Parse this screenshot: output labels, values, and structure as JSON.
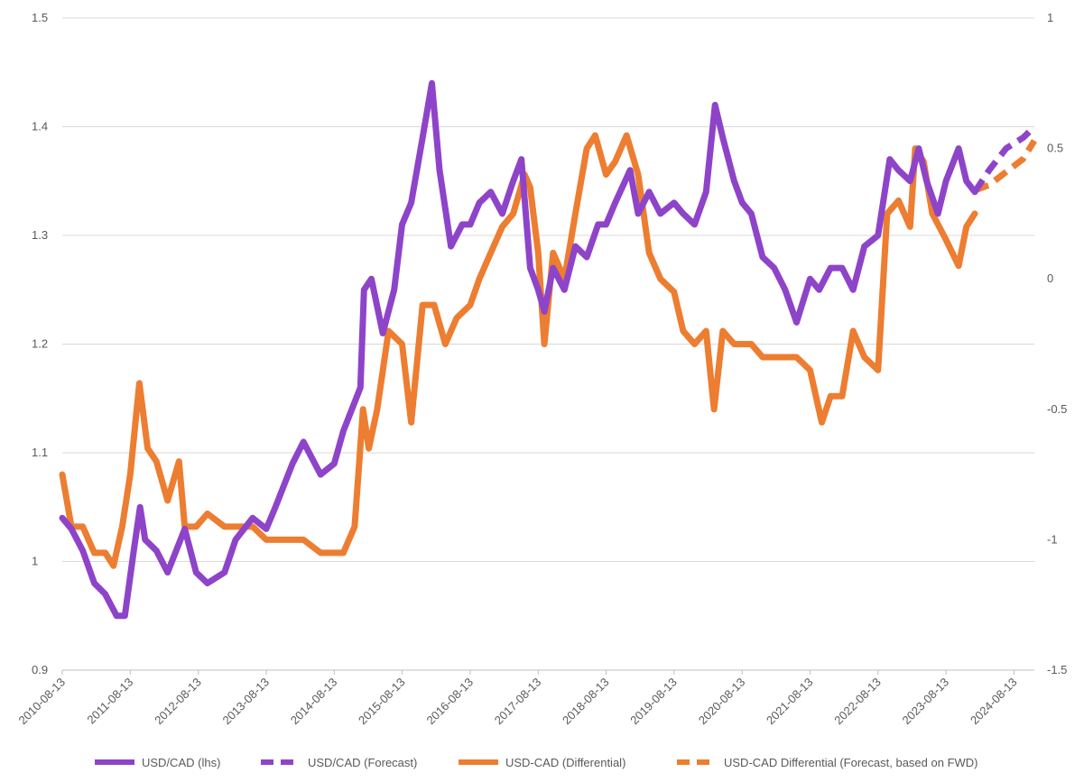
{
  "chart_data": {
    "type": "line",
    "title": "",
    "xlabel": "",
    "ylabel": "",
    "xlim": [
      "2010-08-13",
      "2024-11-30"
    ],
    "ylim_left": [
      0.9,
      1.5
    ],
    "ylim_right": [
      -1.5,
      1
    ],
    "y_ticks_left": [
      "0.9",
      "1",
      "1.1",
      "1.2",
      "1.3",
      "1.4",
      "1.5"
    ],
    "y_ticks_right": [
      "-1.5",
      "-1",
      "-0.5",
      "0",
      "0.5",
      "1"
    ],
    "x_ticks": [
      "2010-08-13",
      "2011-08-13",
      "2012-08-13",
      "2013-08-13",
      "2014-08-13",
      "2015-08-13",
      "2016-08-13",
      "2017-08-13",
      "2018-08-13",
      "2019-08-13",
      "2020-08-13",
      "2021-08-13",
      "2022-08-13",
      "2023-08-13",
      "2024-08-13"
    ],
    "grid": true,
    "legend_position": "bottom",
    "colors": {
      "purple": "#8e44c9",
      "orange": "#ed7d31",
      "grid": "#d9d9d9",
      "text": "#595959"
    },
    "series": [
      {
        "name": "USD/CAD (lhs)",
        "axis": "left",
        "style": "solid",
        "color": "#8e44c9",
        "x": [
          "2010-08-13",
          "2010-10-01",
          "2010-12-01",
          "2011-02-01",
          "2011-04-01",
          "2011-06-01",
          "2011-07-15",
          "2011-09-01",
          "2011-10-05",
          "2011-11-01",
          "2012-01-01",
          "2012-03-01",
          "2012-06-01",
          "2012-08-01",
          "2012-10-01",
          "2013-01-01",
          "2013-03-01",
          "2013-06-01",
          "2013-08-13",
          "2013-10-01",
          "2014-01-01",
          "2014-03-01",
          "2014-06-01",
          "2014-08-13",
          "2014-10-01",
          "2015-01-01",
          "2015-01-20",
          "2015-03-01",
          "2015-05-01",
          "2015-07-01",
          "2015-08-13",
          "2015-10-01",
          "2015-12-01",
          "2016-01-20",
          "2016-03-01",
          "2016-05-01",
          "2016-07-01",
          "2016-08-13",
          "2016-10-01",
          "2016-12-01",
          "2017-02-01",
          "2017-04-01",
          "2017-05-15",
          "2017-07-01",
          "2017-08-13",
          "2017-09-15",
          "2017-11-01",
          "2018-01-01",
          "2018-03-01",
          "2018-05-01",
          "2018-07-01",
          "2018-08-13",
          "2018-10-01",
          "2018-12-20",
          "2019-02-01",
          "2019-04-01",
          "2019-06-01",
          "2019-08-13",
          "2019-10-01",
          "2019-12-01",
          "2020-02-01",
          "2020-03-20",
          "2020-05-01",
          "2020-07-01",
          "2020-08-13",
          "2020-10-01",
          "2020-12-01",
          "2021-02-01",
          "2021-04-01",
          "2021-06-01",
          "2021-08-13",
          "2021-10-01",
          "2021-12-01",
          "2022-02-01",
          "2022-04-01",
          "2022-06-01",
          "2022-08-13",
          "2022-10-15",
          "2022-12-01",
          "2023-02-01",
          "2023-03-20",
          "2023-05-01",
          "2023-07-01",
          "2023-08-13",
          "2023-10-20",
          "2023-12-01",
          "2024-01-15"
        ],
        "values": [
          1.04,
          1.03,
          1.01,
          0.98,
          0.97,
          0.95,
          0.95,
          1.01,
          1.05,
          1.02,
          1.01,
          0.99,
          1.03,
          0.99,
          0.98,
          0.99,
          1.02,
          1.04,
          1.03,
          1.05,
          1.09,
          1.11,
          1.08,
          1.09,
          1.12,
          1.16,
          1.25,
          1.26,
          1.21,
          1.25,
          1.31,
          1.33,
          1.39,
          1.44,
          1.36,
          1.29,
          1.31,
          1.31,
          1.33,
          1.34,
          1.32,
          1.35,
          1.37,
          1.27,
          1.25,
          1.23,
          1.27,
          1.25,
          1.29,
          1.28,
          1.31,
          1.31,
          1.33,
          1.36,
          1.32,
          1.34,
          1.32,
          1.33,
          1.32,
          1.31,
          1.34,
          1.42,
          1.39,
          1.35,
          1.33,
          1.32,
          1.28,
          1.27,
          1.25,
          1.22,
          1.26,
          1.25,
          1.27,
          1.27,
          1.25,
          1.29,
          1.3,
          1.37,
          1.36,
          1.35,
          1.38,
          1.35,
          1.32,
          1.35,
          1.38,
          1.35,
          1.34
        ]
      },
      {
        "name": "USD/CAD (Forecast)",
        "axis": "left",
        "style": "dashed",
        "color": "#8e44c9",
        "x": [
          "2024-01-15",
          "2024-04-01",
          "2024-07-01",
          "2024-10-01",
          "2024-11-30"
        ],
        "values": [
          1.34,
          1.36,
          1.38,
          1.39,
          1.4
        ]
      },
      {
        "name": "USD-CAD (Differential)",
        "axis": "right",
        "style": "solid",
        "color": "#ed7d31",
        "x": [
          "2010-08-13",
          "2010-10-01",
          "2010-12-01",
          "2011-02-01",
          "2011-04-01",
          "2011-05-15",
          "2011-07-01",
          "2011-08-13",
          "2011-10-01",
          "2011-11-15",
          "2012-01-01",
          "2012-03-01",
          "2012-05-01",
          "2012-06-01",
          "2012-08-01",
          "2012-10-01",
          "2013-01-01",
          "2013-03-01",
          "2013-06-01",
          "2013-08-13",
          "2013-10-01",
          "2014-01-01",
          "2014-03-01",
          "2014-06-01",
          "2014-08-13",
          "2014-10-01",
          "2014-12-01",
          "2015-01-15",
          "2015-02-15",
          "2015-04-01",
          "2015-06-01",
          "2015-08-13",
          "2015-10-01",
          "2015-12-01",
          "2016-02-01",
          "2016-04-01",
          "2016-06-01",
          "2016-08-13",
          "2016-10-01",
          "2016-12-01",
          "2017-02-01",
          "2017-04-01",
          "2017-06-01",
          "2017-07-01",
          "2017-08-13",
          "2017-09-15",
          "2017-11-01",
          "2018-01-01",
          "2018-03-01",
          "2018-05-01",
          "2018-06-15",
          "2018-08-13",
          "2018-10-01",
          "2018-12-01",
          "2019-02-01",
          "2019-04-01",
          "2019-06-01",
          "2019-08-13",
          "2019-10-01",
          "2019-12-01",
          "2020-02-01",
          "2020-03-15",
          "2020-05-01",
          "2020-07-01",
          "2020-08-13",
          "2020-10-01",
          "2020-12-01",
          "2021-02-01",
          "2021-04-01",
          "2021-06-01",
          "2021-08-13",
          "2021-10-15",
          "2021-12-01",
          "2022-02-01",
          "2022-04-01",
          "2022-06-01",
          "2022-08-13",
          "2022-10-01",
          "2022-12-01",
          "2023-02-01",
          "2023-03-01",
          "2023-04-15",
          "2023-06-01",
          "2023-08-13",
          "2023-10-20",
          "2023-12-01",
          "2024-01-15"
        ],
        "values": [
          -0.75,
          -0.95,
          -0.95,
          -1.05,
          -1.05,
          -1.1,
          -0.95,
          -0.75,
          -0.4,
          -0.65,
          -0.7,
          -0.85,
          -0.7,
          -0.95,
          -0.95,
          -0.9,
          -0.95,
          -0.95,
          -0.95,
          -1.0,
          -1.0,
          -1.0,
          -1.0,
          -1.05,
          -1.05,
          -1.05,
          -0.95,
          -0.5,
          -0.65,
          -0.5,
          -0.2,
          -0.25,
          -0.55,
          -0.1,
          -0.1,
          -0.25,
          -0.15,
          -0.1,
          0.0,
          0.1,
          0.2,
          0.25,
          0.4,
          0.35,
          0.1,
          -0.25,
          0.1,
          0.0,
          0.25,
          0.5,
          0.55,
          0.4,
          0.45,
          0.55,
          0.4,
          0.1,
          0.0,
          -0.05,
          -0.2,
          -0.25,
          -0.2,
          -0.5,
          -0.2,
          -0.25,
          -0.25,
          -0.25,
          -0.3,
          -0.3,
          -0.3,
          -0.3,
          -0.35,
          -0.55,
          -0.45,
          -0.45,
          -0.2,
          -0.3,
          -0.35,
          0.25,
          0.3,
          0.2,
          0.5,
          0.45,
          0.25,
          0.15,
          0.05,
          0.2,
          0.25
        ]
      },
      {
        "name": "USD-CAD Differential (Forecast, based on FWD)",
        "axis": "right",
        "style": "dashed",
        "color": "#ed7d31",
        "x": [
          "2024-01-15",
          "2024-04-01",
          "2024-07-01",
          "2024-10-01",
          "2024-11-30"
        ],
        "values": [
          0.34,
          0.36,
          0.41,
          0.46,
          0.53
        ]
      }
    ]
  }
}
